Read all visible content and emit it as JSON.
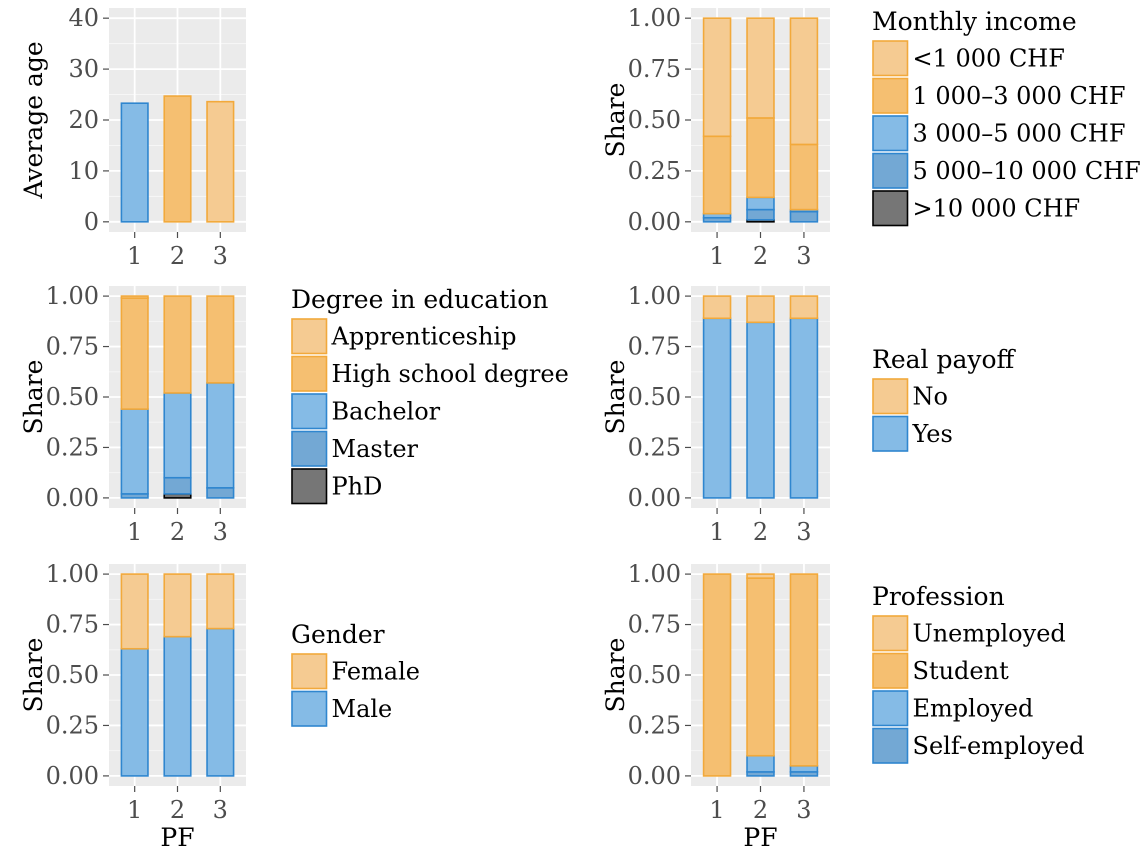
{
  "colors": {
    "light_orange": "#f5cb92",
    "orange": "#f5bf71",
    "light_blue": "#85bbe6",
    "blue": "#73a8d4",
    "dark": "#767676",
    "border_orange": "#f2a93b",
    "border_blue": "#2f86cf",
    "border_dark": "#000000"
  },
  "chart_data": [
    {
      "id": "age",
      "type": "bar",
      "categories": [
        "1",
        "2",
        "3"
      ],
      "values": [
        23.3,
        24.7,
        23.6
      ],
      "bar_colors": [
        "light_blue",
        "orange",
        "light_orange"
      ],
      "xlabel": "",
      "ylabel": "Average age",
      "ylim": [
        -2,
        42
      ],
      "yticks": [
        0,
        10,
        20,
        30,
        40
      ],
      "ytick_labels": [
        "0",
        "10",
        "20",
        "30",
        "40"
      ],
      "grid": true,
      "legend": null
    },
    {
      "id": "income",
      "type": "bar",
      "stacked": true,
      "categories": [
        "1",
        "2",
        "3"
      ],
      "series": [
        {
          "name": "<1 000 CHF",
          "color": "light_orange",
          "values": [
            0.58,
            0.49,
            0.62
          ]
        },
        {
          "name": "1 000–3 000 CHF",
          "color": "orange",
          "values": [
            0.38,
            0.39,
            0.32
          ]
        },
        {
          "name": "3 000–5 000 CHF",
          "color": "light_blue",
          "values": [
            0.02,
            0.06,
            0.01
          ]
        },
        {
          "name": "5 000–10 000 CHF",
          "color": "blue",
          "values": [
            0.02,
            0.05,
            0.05
          ]
        },
        {
          "name": ">10 000 CHF",
          "color": "dark",
          "values": [
            0.0,
            0.01,
            0.0
          ]
        }
      ],
      "xlabel": "",
      "ylabel": "Share",
      "ylim": [
        -0.05,
        1.05
      ],
      "yticks": [
        0,
        0.25,
        0.5,
        0.75,
        1
      ],
      "ytick_labels": [
        "0.00",
        "0.25",
        "0.50",
        "0.75",
        "1.00"
      ],
      "grid": true,
      "legend": {
        "title": "Monthly income",
        "placement": "right-top"
      }
    },
    {
      "id": "education",
      "type": "bar",
      "stacked": true,
      "categories": [
        "1",
        "2",
        "3"
      ],
      "series": [
        {
          "name": "Apprenticeship",
          "color": "light_orange",
          "values": [
            0.01,
            0.0,
            0.0
          ]
        },
        {
          "name": "High school degree",
          "color": "orange",
          "values": [
            0.55,
            0.48,
            0.43
          ]
        },
        {
          "name": "Bachelor",
          "color": "light_blue",
          "values": [
            0.42,
            0.42,
            0.52
          ]
        },
        {
          "name": "Master",
          "color": "blue",
          "values": [
            0.02,
            0.08,
            0.05
          ]
        },
        {
          "name": "PhD",
          "color": "dark",
          "values": [
            0.0,
            0.02,
            0.0
          ]
        }
      ],
      "xlabel": "",
      "ylabel": "Share",
      "ylim": [
        -0.05,
        1.05
      ],
      "yticks": [
        0,
        0.25,
        0.5,
        0.75,
        1
      ],
      "ytick_labels": [
        "0.00",
        "0.25",
        "0.50",
        "0.75",
        "1.00"
      ],
      "grid": true,
      "legend": {
        "title": "Degree in education",
        "placement": "right-top"
      }
    },
    {
      "id": "payoff",
      "type": "bar",
      "stacked": true,
      "categories": [
        "1",
        "2",
        "3"
      ],
      "series": [
        {
          "name": "No",
          "color": "light_orange",
          "values": [
            0.11,
            0.13,
            0.11
          ]
        },
        {
          "name": "Yes",
          "color": "light_blue",
          "values": [
            0.89,
            0.87,
            0.89
          ]
        }
      ],
      "xlabel": "",
      "ylabel": "Share",
      "ylim": [
        -0.05,
        1.05
      ],
      "yticks": [
        0,
        0.25,
        0.5,
        0.75,
        1
      ],
      "ytick_labels": [
        "0.00",
        "0.25",
        "0.50",
        "0.75",
        "1.00"
      ],
      "grid": true,
      "legend": {
        "title": "Real payoff",
        "placement": "right-middle"
      }
    },
    {
      "id": "gender",
      "type": "bar",
      "stacked": true,
      "categories": [
        "1",
        "2",
        "3"
      ],
      "series": [
        {
          "name": "Female",
          "color": "light_orange",
          "values": [
            0.37,
            0.31,
            0.27
          ]
        },
        {
          "name": "Male",
          "color": "light_blue",
          "values": [
            0.63,
            0.69,
            0.73
          ]
        }
      ],
      "xlabel": "PF",
      "ylabel": "Share",
      "ylim": [
        -0.05,
        1.05
      ],
      "yticks": [
        0,
        0.25,
        0.5,
        0.75,
        1
      ],
      "ytick_labels": [
        "0.00",
        "0.25",
        "0.50",
        "0.75",
        "1.00"
      ],
      "grid": true,
      "legend": {
        "title": "Gender",
        "placement": "right-middle"
      }
    },
    {
      "id": "profession",
      "type": "bar",
      "stacked": true,
      "categories": [
        "1",
        "2",
        "3"
      ],
      "series": [
        {
          "name": "Unemployed",
          "color": "light_orange",
          "values": [
            0.0,
            0.02,
            0.0
          ]
        },
        {
          "name": "Student",
          "color": "orange",
          "values": [
            1.0,
            0.88,
            0.95
          ]
        },
        {
          "name": "Employed",
          "color": "light_blue",
          "values": [
            0.0,
            0.08,
            0.03
          ]
        },
        {
          "name": "Self-employed",
          "color": "blue",
          "values": [
            0.0,
            0.02,
            0.02
          ]
        }
      ],
      "xlabel": "PF",
      "ylabel": "Share",
      "ylim": [
        -0.05,
        1.05
      ],
      "yticks": [
        0,
        0.25,
        0.5,
        0.75,
        1
      ],
      "ytick_labels": [
        "0.00",
        "0.25",
        "0.50",
        "0.75",
        "1.00"
      ],
      "grid": true,
      "legend": {
        "title": "Profession",
        "placement": "right-middle"
      }
    }
  ]
}
